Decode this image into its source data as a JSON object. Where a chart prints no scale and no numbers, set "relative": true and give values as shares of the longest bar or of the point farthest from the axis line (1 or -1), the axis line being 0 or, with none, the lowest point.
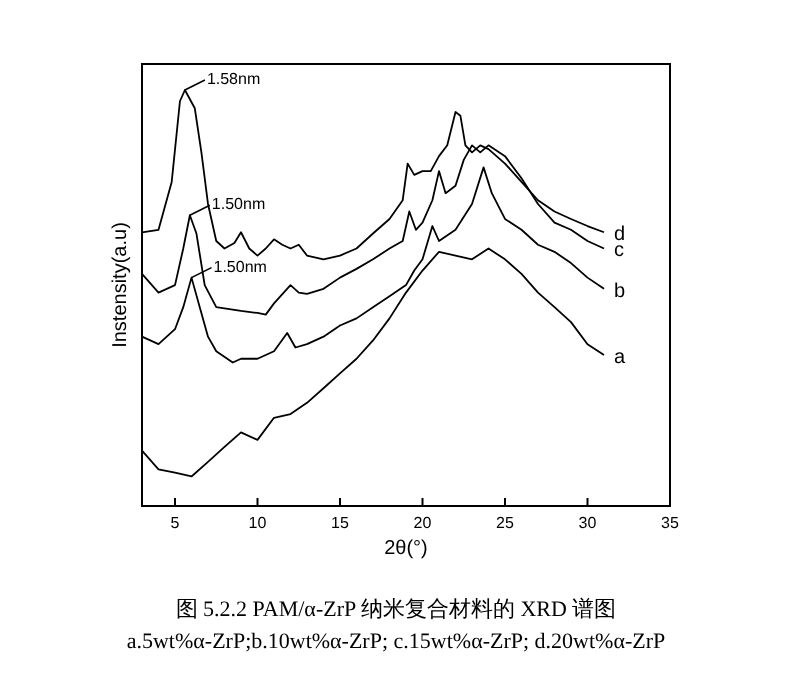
{
  "chart_data": {
    "type": "line",
    "relative": true,
    "xlabel": "2θ(°)",
    "ylabel": "Instensity(a.u)",
    "xlim": [
      3,
      35
    ],
    "xticks": [
      5,
      10,
      15,
      20,
      25,
      30,
      35
    ],
    "x": [
      3,
      4,
      5,
      6,
      7,
      8,
      9,
      10,
      11,
      12,
      13,
      14,
      15,
      16,
      17,
      18,
      19,
      20,
      21,
      22,
      23,
      24,
      25,
      26,
      27,
      28,
      29,
      30,
      31
    ],
    "series": [
      {
        "name": "a",
        "color": "#000000",
        "values": [
          0.133,
          0.088,
          0.08,
          0.071,
          0.106,
          0.142,
          0.177,
          0.159,
          0.212,
          0.221,
          0.248,
          0.283,
          0.319,
          0.354,
          0.398,
          0.451,
          0.513,
          0.566,
          0.611,
          0.602,
          0.593,
          0.619,
          0.593,
          0.558,
          0.513,
          0.478,
          0.442,
          0.389,
          0.363
        ]
      },
      {
        "name": "b",
        "color": "#000000",
        "x": [
          3,
          4,
          5,
          5.5,
          6,
          6.5,
          7,
          7.5,
          8.5,
          9,
          10,
          11,
          11.8,
          12.3,
          13,
          14,
          15,
          16,
          17,
          18,
          19,
          19.5,
          20,
          20.6,
          21,
          22,
          23,
          23.7,
          24.2,
          25,
          26,
          27,
          28,
          29,
          30,
          31
        ],
        "values": [
          0.407,
          0.389,
          0.425,
          0.478,
          0.549,
          0.478,
          0.407,
          0.372,
          0.345,
          0.354,
          0.354,
          0.372,
          0.416,
          0.381,
          0.389,
          0.407,
          0.434,
          0.451,
          0.478,
          0.504,
          0.531,
          0.566,
          0.593,
          0.673,
          0.637,
          0.664,
          0.726,
          0.814,
          0.752,
          0.69,
          0.664,
          0.628,
          0.611,
          0.584,
          0.549,
          0.522
        ]
      },
      {
        "name": "c",
        "color": "#000000",
        "x": [
          3,
          4,
          5,
          5.5,
          5.9,
          6.3,
          6.8,
          7.5,
          8,
          9,
          10,
          10.5,
          11,
          12,
          12.5,
          13,
          14,
          15,
          16,
          17,
          18,
          18.8,
          19.2,
          19.6,
          20,
          20.6,
          21,
          21.4,
          22,
          22.5,
          23,
          23.5,
          24,
          25,
          26,
          27,
          28,
          29,
          30,
          31
        ],
        "values": [
          0.558,
          0.513,
          0.531,
          0.619,
          0.699,
          0.655,
          0.531,
          0.478,
          0.475,
          0.469,
          0.464,
          0.46,
          0.487,
          0.531,
          0.513,
          0.51,
          0.522,
          0.549,
          0.57,
          0.593,
          0.619,
          0.637,
          0.708,
          0.664,
          0.681,
          0.735,
          0.805,
          0.752,
          0.77,
          0.832,
          0.867,
          0.85,
          0.867,
          0.841,
          0.788,
          0.726,
          0.681,
          0.664,
          0.637,
          0.619
        ]
      },
      {
        "name": "d",
        "color": "#000000",
        "x": [
          3,
          4,
          4.8,
          5.3,
          5.6,
          6.2,
          6.6,
          7,
          7.5,
          8,
          8.6,
          9,
          9.5,
          10,
          10.5,
          11,
          11.5,
          12,
          12.5,
          13,
          14,
          15,
          16,
          17,
          18,
          18.8,
          19.1,
          19.5,
          20,
          20.5,
          21,
          21.5,
          22,
          22.3,
          22.6,
          23,
          23.5,
          24,
          25,
          26,
          27,
          28,
          29,
          30,
          31
        ],
        "values": [
          0.658,
          0.664,
          0.779,
          0.973,
          1.0,
          0.956,
          0.85,
          0.726,
          0.637,
          0.619,
          0.632,
          0.658,
          0.619,
          0.602,
          0.619,
          0.641,
          0.628,
          0.619,
          0.628,
          0.602,
          0.593,
          0.602,
          0.619,
          0.655,
          0.69,
          0.735,
          0.823,
          0.796,
          0.805,
          0.805,
          0.841,
          0.867,
          0.947,
          0.938,
          0.867,
          0.85,
          0.867,
          0.858,
          0.823,
          0.779,
          0.735,
          0.708,
          0.69,
          0.673,
          0.658
        ]
      }
    ],
    "annotations": [
      {
        "text": "1.58nm",
        "x": 5.6,
        "y": 1.0
      },
      {
        "text": "1.50nm",
        "x": 5.9,
        "y": 0.699
      },
      {
        "text": "1.50nm",
        "x": 6,
        "y": 0.549
      },
      "图 5.2.2 PAM/α-ZrP 纳米复合材料的 XRD 谱图",
      "a.5wt%α-ZrP;b.10wt%α-ZrP; c.15wt%α-ZrP; d.20wt%α-ZrP"
    ]
  }
}
